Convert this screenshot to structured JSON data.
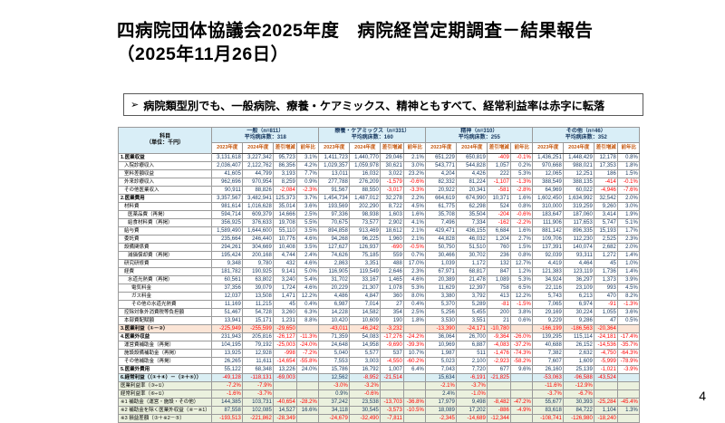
{
  "page": {
    "title_line1": "四病院団体協議会2025年度　病院経営定期調査－結果報告",
    "title_line2": "（2025年11月26日）",
    "page_number": "4"
  },
  "callout": {
    "bullet": "➢",
    "text": "病院類型別でも、一般病院、療養・ケアミックス、精神ともすべて、経常利益率は赤字に転落"
  },
  "table": {
    "corner": {
      "line1": "科目",
      "line2": "（単位：千円）"
    },
    "groups": [
      {
        "name": "一般（n=811）",
        "beds": "平均病床数：318"
      },
      {
        "name": "療養・ケアミックス（n=331）",
        "beds": "平均病床数：160"
      },
      {
        "name": "精神（n=310）",
        "beds": "平均病床数：255"
      },
      {
        "name": "その他（n=46）",
        "beds": "平均病床数：352"
      }
    ],
    "subheaders": [
      "2023年度",
      "2024年度",
      "差引増減",
      "前年比"
    ],
    "rows": [
      {
        "label": "1.医業収益",
        "indent": 0,
        "bold": true,
        "sep": true,
        "bg": "",
        "values": [
          "3,131,618",
          "3,227,342",
          "95,723",
          "3.1%",
          "1,411,723",
          "1,440,770",
          "29,046",
          "2.1%",
          "651,229",
          "650,819",
          "-409",
          "-0.1%",
          "1,436,251",
          "1,448,429",
          "12,178",
          "0.8%"
        ]
      },
      {
        "label": "入院診療収入",
        "indent": 1,
        "bold": false,
        "sep": false,
        "bg": "",
        "values": [
          "2,036,407",
          "2,122,762",
          "86,356",
          "4.2%",
          "1,029,357",
          "1,059,978",
          "30,621",
          "3.0%",
          "543,771",
          "544,828",
          "1,057",
          "0.2%",
          "970,668",
          "988,021",
          "17,353",
          "1.8%"
        ]
      },
      {
        "label": "室料差額収益",
        "indent": 1,
        "bold": false,
        "sep": false,
        "bg": "",
        "values": [
          "41,605",
          "44,799",
          "3,193",
          "7.7%",
          "13,011",
          "16,032",
          "3,022",
          "23.2%",
          "4,204",
          "4,426",
          "222",
          "5.3%",
          "12,065",
          "12,251",
          "186",
          "1.5%"
        ]
      },
      {
        "label": "外来診療収入",
        "indent": 1,
        "bold": false,
        "sep": false,
        "bg": "",
        "values": [
          "962,696",
          "970,954",
          "8,259",
          "0.9%",
          "277,788",
          "276,209",
          "-1,579",
          "-0.6%",
          "82,332",
          "81,224",
          "-1,107",
          "-1.3%",
          "388,549",
          "388,135",
          "-414",
          "-0.1%"
        ]
      },
      {
        "label": "その他医業収入",
        "indent": 1,
        "bold": false,
        "sep": false,
        "bg": "",
        "values": [
          "90,911",
          "88,826",
          "-2,084",
          "-2.3%",
          "91,567",
          "88,550",
          "-3,017",
          "-3.3%",
          "20,922",
          "20,341",
          "-581",
          "-2.8%",
          "64,969",
          "60,022",
          "-4,946",
          "-7.6%"
        ]
      },
      {
        "label": "2.医業費用",
        "indent": 0,
        "bold": true,
        "sep": true,
        "bg": "",
        "values": [
          "3,357,567",
          "3,482,941",
          "125,373",
          "3.7%",
          "1,454,734",
          "1,487,012",
          "32,278",
          "2.2%",
          "664,619",
          "674,990",
          "10,371",
          "1.6%",
          "1,602,450",
          "1,634,992",
          "32,542",
          "2.0%"
        ]
      },
      {
        "label": "材料費",
        "indent": 1,
        "bold": false,
        "sep": false,
        "bg": "",
        "values": [
          "981,614",
          "1,016,628",
          "35,014",
          "3.6%",
          "193,569",
          "202,290",
          "8,722",
          "4.5%",
          "61,775",
          "62,298",
          "524",
          "0.8%",
          "310,000",
          "319,259",
          "9,260",
          "3.0%"
        ]
      },
      {
        "label": "医薬品費（再掲）",
        "indent": 2,
        "bold": false,
        "sep": false,
        "bg": "",
        "values": [
          "594,714",
          "609,379",
          "14,666",
          "2.5%",
          "97,336",
          "98,938",
          "1,603",
          "1.6%",
          "35,708",
          "35,504",
          "-204",
          "-0.6%",
          "183,647",
          "187,060",
          "3,414",
          "1.9%"
        ]
      },
      {
        "label": "給食材料費（再掲）",
        "indent": 2,
        "bold": false,
        "sep": false,
        "bg": "",
        "values": [
          "356,925",
          "376,633",
          "19,708",
          "5.5%",
          "70,675",
          "73,577",
          "2,902",
          "4.1%",
          "7,496",
          "7,334",
          "-162",
          "-2.2%",
          "111,906",
          "117,653",
          "5,747",
          "5.1%"
        ]
      },
      {
        "label": "給与費",
        "indent": 1,
        "bold": false,
        "sep": false,
        "bg": "",
        "values": [
          "1,589,490",
          "1,644,600",
          "55,110",
          "3.5%",
          "894,858",
          "913,469",
          "18,612",
          "2.1%",
          "429,471",
          "436,155",
          "6,684",
          "1.6%",
          "881,142",
          "896,335",
          "15,193",
          "1.7%"
        ]
      },
      {
        "label": "委託費",
        "indent": 1,
        "bold": false,
        "sep": false,
        "bg": "",
        "values": [
          "235,664",
          "246,440",
          "10,776",
          "4.6%",
          "94,268",
          "96,225",
          "1,960",
          "2.1%",
          "44,828",
          "46,032",
          "1,204",
          "2.7%",
          "109,706",
          "112,230",
          "2,525",
          "2.3%"
        ]
      },
      {
        "label": "設備関係費",
        "indent": 1,
        "bold": false,
        "sep": false,
        "bg": "",
        "values": [
          "294,261",
          "304,669",
          "10,408",
          "3.5%",
          "127,627",
          "126,937",
          "-690",
          "-0.5%",
          "50,750",
          "51,510",
          "760",
          "1.5%",
          "137,391",
          "140,074",
          "2,682",
          "2.0%"
        ]
      },
      {
        "label": "減価償却費（再掲）",
        "indent": 2,
        "bold": false,
        "sep": false,
        "bg": "",
        "values": [
          "195,424",
          "200,168",
          "4,744",
          "2.4%",
          "74,626",
          "75,185",
          "559",
          "0.7%",
          "30,466",
          "30,702",
          "236",
          "0.8%",
          "92,039",
          "93,311",
          "1,272",
          "1.4%"
        ]
      },
      {
        "label": "研究研修費",
        "indent": 1,
        "bold": false,
        "sep": false,
        "bg": "",
        "values": [
          "9,348",
          "9,780",
          "432",
          "4.6%",
          "2,863",
          "3,351",
          "488",
          "17.0%",
          "1,039",
          "1,172",
          "132",
          "12.7%",
          "4,419",
          "4,464",
          "45",
          "1.0%"
        ]
      },
      {
        "label": "経費",
        "indent": 1,
        "bold": false,
        "sep": false,
        "bg": "",
        "values": [
          "181,782",
          "190,925",
          "9,141",
          "5.0%",
          "116,905",
          "119,549",
          "2,646",
          "2.3%",
          "67,971",
          "68,817",
          "847",
          "1.2%",
          "121,383",
          "123,119",
          "1,736",
          "1.4%"
        ]
      },
      {
        "label": "水道光熱費（再掲）",
        "indent": 2,
        "bold": false,
        "sep": false,
        "bg": "",
        "values": [
          "60,561",
          "63,802",
          "3,240",
          "5.4%",
          "31,702",
          "33,167",
          "1,465",
          "4.6%",
          "20,389",
          "21,478",
          "1,089",
          "5.3%",
          "34,924",
          "36,297",
          "1,373",
          "3.9%"
        ]
      },
      {
        "label": "電気料金",
        "indent": 3,
        "bold": false,
        "sep": false,
        "bg": "",
        "values": [
          "37,356",
          "39,079",
          "1,724",
          "4.6%",
          "20,229",
          "21,307",
          "1,078",
          "5.3%",
          "11,629",
          "12,397",
          "758",
          "6.5%",
          "22,116",
          "23,109",
          "993",
          "4.5%"
        ]
      },
      {
        "label": "ガス料金",
        "indent": 3,
        "bold": false,
        "sep": false,
        "bg": "",
        "values": [
          "12,037",
          "13,508",
          "1,471",
          "12.2%",
          "4,486",
          "4,847",
          "360",
          "8.0%",
          "3,380",
          "3,792",
          "413",
          "12.2%",
          "5,743",
          "6,213",
          "470",
          "8.2%"
        ]
      },
      {
        "label": "その他の水道光熱費",
        "indent": 3,
        "bold": false,
        "sep": false,
        "bg": "",
        "values": [
          "11,169",
          "11,215",
          "45",
          "0.4%",
          "6,987",
          "7,014",
          "27",
          "0.4%",
          "5,370",
          "5,289",
          "-81",
          "-1.5%",
          "7,065",
          "6,974",
          "-91",
          "-1.3%"
        ]
      },
      {
        "label": "控除対象外消費税等負担額",
        "indent": 1,
        "bold": false,
        "sep": false,
        "bg": "",
        "values": [
          "51,467",
          "54,728",
          "3,260",
          "6.3%",
          "14,228",
          "14,582",
          "354",
          "2.5%",
          "5,256",
          "5,455",
          "200",
          "3.8%",
          "29,169",
          "30,224",
          "1,055",
          "3.6%"
        ]
      },
      {
        "label": "本部費配賦額",
        "indent": 1,
        "bold": false,
        "sep": false,
        "bg": "",
        "values": [
          "13,941",
          "15,171",
          "1,231",
          "8.8%",
          "10,420",
          "10,609",
          "190",
          "1.8%",
          "3,530",
          "3,551",
          "21",
          "0.6%",
          "9,229",
          "9,286",
          "47",
          "0.5%"
        ]
      },
      {
        "label": "3.医業利益（①－②）",
        "indent": 0,
        "bold": true,
        "sep": true,
        "bg": "peach",
        "values": [
          "-225,949",
          "-255,599",
          "-29,650",
          "",
          "-43,011",
          "-46,242",
          "-3,232",
          "",
          "-13,390",
          "-24,171",
          "-10,780",
          "",
          "-166,199",
          "-186,563",
          "-20,364",
          ""
        ]
      },
      {
        "label": "4.医業外収益",
        "indent": 0,
        "bold": true,
        "sep": true,
        "bg": "",
        "values": [
          "231,943",
          "205,816",
          "-26,127",
          "-11.3%",
          "71,359",
          "54,083",
          "-17,276",
          "-24.2%",
          "36,064",
          "26,700",
          "-9,364",
          "-26.0%",
          "139,295",
          "115,114",
          "-24,181",
          "-17.4%"
        ]
      },
      {
        "label": "運営費補助金（再掲）",
        "indent": 1,
        "bold": false,
        "sep": false,
        "bg": "",
        "values": [
          "104,195",
          "79,192",
          "-25,003",
          "-24.0%",
          "24,648",
          "14,958",
          "-9,690",
          "-39.3%",
          "10,969",
          "6,887",
          "-4,083",
          "-37.2%",
          "40,688",
          "26,152",
          "-14,536",
          "-35.7%"
        ]
      },
      {
        "label": "施設設備補助金（再掲）",
        "indent": 1,
        "bold": false,
        "sep": false,
        "bg": "",
        "values": [
          "13,925",
          "12,928",
          "-998",
          "-7.2%",
          "5,040",
          "5,577",
          "537",
          "10.7%",
          "1,987",
          "511",
          "-1,476",
          "-74.3%",
          "7,382",
          "2,632",
          "-4,750",
          "-64.3%"
        ]
      },
      {
        "label": "その他補助金（再掲）",
        "indent": 1,
        "bold": false,
        "sep": false,
        "bg": "",
        "values": [
          "26,265",
          "11,611",
          "-14,654",
          "-55.8%",
          "7,553",
          "3,003",
          "-4,550",
          "-60.2%",
          "5,023",
          "2,100",
          "-2,923",
          "-58.2%",
          "7,607",
          "1,609",
          "-5,999",
          "-78.9%"
        ]
      },
      {
        "label": "5.医業外費用",
        "indent": 0,
        "bold": true,
        "sep": true,
        "bg": "",
        "values": [
          "55,122",
          "68,348",
          "13,226",
          "24.0%",
          "15,786",
          "16,792",
          "1,007",
          "6.4%",
          "7,043",
          "7,720",
          "677",
          "9.6%",
          "26,160",
          "25,139",
          "-1,021",
          "-3.9%"
        ]
      },
      {
        "label": "6.経常利益（（①＋④）－（②＋⑤））",
        "indent": 0,
        "bold": true,
        "sep": true,
        "bg": "blue",
        "values": [
          "-49,128",
          "-118,131",
          "-69,003",
          "",
          "12,562",
          "-8,952",
          "-21,514",
          "",
          "15,634",
          "-6,191",
          "-21,825",
          "",
          "-53,063",
          "-96,588",
          "-43,524",
          ""
        ]
      },
      {
        "label": "医業利益率（③÷①）",
        "indent": 0,
        "bold": false,
        "sep": true,
        "bg": "green",
        "values": [
          "-7.2%",
          "-7.9%",
          "",
          "",
          "-3.0%",
          "-3.2%",
          "",
          "",
          "-2.1%",
          "-3.7%",
          "",
          "",
          "-11.6%",
          "-12.9%",
          "",
          ""
        ]
      },
      {
        "label": "経常利益率（⑥÷①）",
        "indent": 0,
        "bold": false,
        "sep": false,
        "bg": "green",
        "values": [
          "-1.6%",
          "-3.7%",
          "",
          "",
          "0.9%",
          "-0.6%",
          "",
          "",
          "2.4%",
          "-1.0%",
          "",
          "",
          "-3.7%",
          "-6.7%",
          "",
          ""
        ]
      },
      {
        "label": "※1 補助金（運営・施設・その他）",
        "indent": 0,
        "bold": false,
        "sep": true,
        "bg": "green",
        "values": [
          "144,385",
          "103,731",
          "-40,654",
          "-28.2%",
          "37,242",
          "23,538",
          "-13,703",
          "-36.8%",
          "17,979",
          "9,498",
          "-8,482",
          "-47.2%",
          "55,677",
          "30,393",
          "-25,284",
          "-45.4%"
        ]
      },
      {
        "label": "※2 補助金を除く医業外収益（④－※1）",
        "indent": 0,
        "bold": false,
        "sep": false,
        "bg": "green",
        "values": [
          "87,558",
          "102,085",
          "14,527",
          "16.6%",
          "34,118",
          "30,545",
          "-3,573",
          "-10.5%",
          "18,089",
          "17,202",
          "-886",
          "-4.9%",
          "83,618",
          "84,722",
          "1,104",
          "1.3%"
        ]
      },
      {
        "label": "※3 損益差額（③＋※2－⑤）",
        "indent": 0,
        "bold": false,
        "sep": false,
        "bg": "green",
        "values": [
          "-193,513",
          "-221,862",
          "-28,349",
          "",
          "-24,679",
          "-32,490",
          "-7,811",
          "",
          "-2,345",
          "-14,689",
          "-12,344",
          "",
          "-108,741",
          "-126,980",
          "-18,240",
          ""
        ]
      }
    ]
  }
}
